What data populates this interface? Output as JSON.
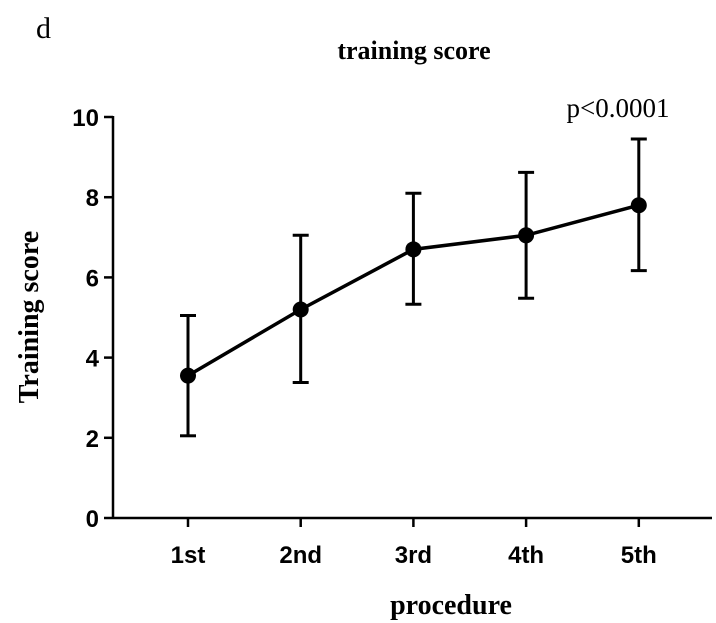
{
  "panel_label": "d",
  "chart_data": {
    "type": "line",
    "title": "training score",
    "xlabel": "procedure",
    "ylabel": "Training score",
    "annotation": "p<0.0001",
    "categories": [
      "1st",
      "2nd",
      "3rd",
      "4th",
      "5th"
    ],
    "values": [
      3.55,
      5.2,
      6.7,
      7.05,
      7.8
    ],
    "error_upper": [
      5.05,
      7.05,
      8.1,
      8.62,
      9.45
    ],
    "error_lower": [
      2.05,
      3.38,
      5.33,
      5.48,
      6.17
    ],
    "ylim": [
      0,
      10
    ],
    "yticks": [
      0,
      2,
      4,
      6,
      8,
      10
    ],
    "grid": false,
    "colors": {
      "line": "#000000",
      "marker": "#000000",
      "axis": "#000000"
    }
  }
}
